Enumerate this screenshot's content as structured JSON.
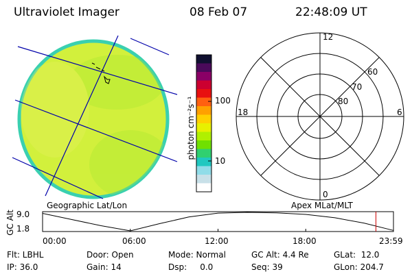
{
  "header": {
    "instrument": "Ultraviolet Imager",
    "date": "08 Feb 07",
    "time": "22:48:09 UT"
  },
  "colorbar": {
    "unit_label": "photon cm⁻²s⁻¹",
    "ticks": [
      "100",
      "10"
    ],
    "colors": [
      "#101030",
      "#4a0a5a",
      "#8a0066",
      "#cc0030",
      "#e81010",
      "#ff6010",
      "#ffa000",
      "#ffd000",
      "#e8f000",
      "#b0f000",
      "#70e000",
      "#30d070",
      "#20c8c0",
      "#90dce8",
      "#c8e0e8",
      "#ffffff"
    ]
  },
  "earth_image": {
    "fill_color": "#d2f03c",
    "edge_color": "#3ad0b0",
    "line_color": "#0000aa"
  },
  "polar_plot": {
    "mlt_labels": [
      "12",
      "18",
      "6",
      "0"
    ],
    "lat_labels": [
      "60",
      "70",
      "80"
    ]
  },
  "footer_labels": {
    "left": "Geographic Lat/Lon",
    "right": "Apex MLat/MLT"
  },
  "altitude_plot": {
    "ylabel": "GC Alt",
    "yticks": [
      "9.0",
      "1.8"
    ],
    "xticks": [
      "00:00",
      "06:00",
      "12:00",
      "18:00",
      "23:59"
    ],
    "current_marker_color": "#cc0000"
  },
  "chart_data": {
    "type": "line",
    "ylabel": "GC Alt",
    "xlabel": "",
    "title": "",
    "ylim": [
      1.8,
      9.0
    ],
    "x": [
      0,
      2,
      4,
      6,
      8,
      10,
      12,
      14,
      16,
      18,
      20,
      22,
      23.98
    ],
    "series": [
      {
        "values": [
          8.6,
          6.2,
          3.8,
          1.8,
          4.6,
          7.2,
          8.7,
          9.0,
          8.8,
          8.2,
          6.9,
          4.8,
          2.0
        ]
      }
    ],
    "marker_x": 22.8
  },
  "info": {
    "flt": "Flt: LBHL",
    "door": "Door: Open",
    "mode": "Mode: Normal",
    "gc_alt": "GC Alt: 4.4 Re",
    "glat": "GLat:  12.0",
    "ip": "IP: 36.0",
    "gain": "Gain: 14",
    "dsp": "Dsp:     0.0",
    "seq": "Seq: 39",
    "glon": "GLon: 204.7"
  }
}
